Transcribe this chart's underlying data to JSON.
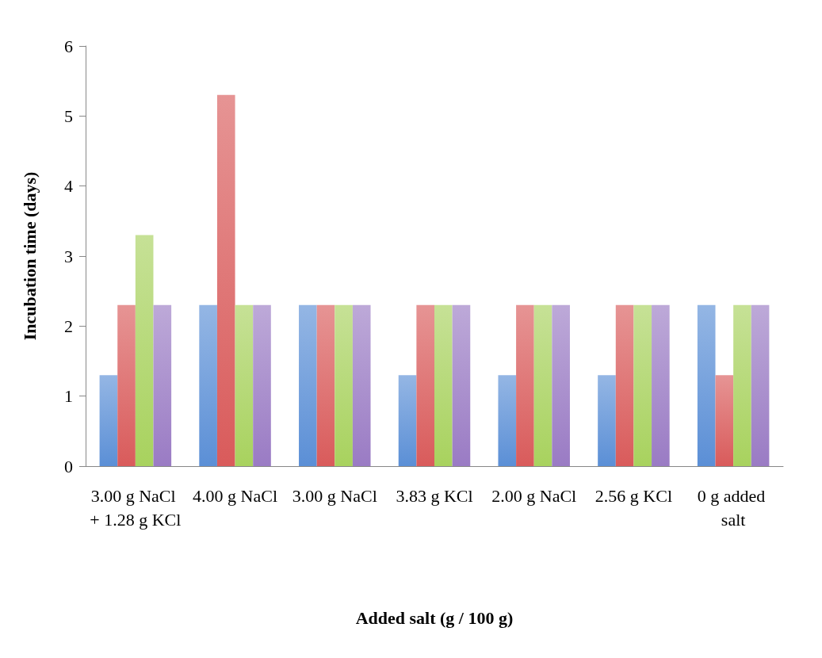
{
  "chart_data": {
    "type": "bar",
    "xlabel": "Added salt (g / 100 g)",
    "ylabel": "Incubation time (days)",
    "categories": [
      "3.00 g NaCl + 1.28 g KCl",
      "4.00 g NaCl",
      "3.00 g NaCl",
      "3.83 g KCl",
      "2.00 g NaCl",
      "2.56 g KCl",
      "0 g added salt"
    ],
    "series": [
      {
        "color": "#5b8fd6",
        "values": [
          1.3,
          2.3,
          2.3,
          1.3,
          1.3,
          1.3,
          2.3
        ]
      },
      {
        "color": "#d95b5b",
        "values": [
          2.3,
          5.3,
          2.3,
          2.3,
          2.3,
          2.3,
          1.3
        ]
      },
      {
        "color": "#a8d25e",
        "values": [
          3.3,
          2.3,
          2.3,
          2.3,
          2.3,
          2.3,
          2.3
        ]
      },
      {
        "color": "#9a7bc4",
        "values": [
          2.3,
          2.3,
          2.3,
          2.3,
          2.3,
          2.3,
          2.3
        ]
      }
    ],
    "ylim": [
      0,
      6
    ],
    "yticks": [
      0,
      1,
      2,
      3,
      4,
      5,
      6
    ],
    "grid": false
  }
}
